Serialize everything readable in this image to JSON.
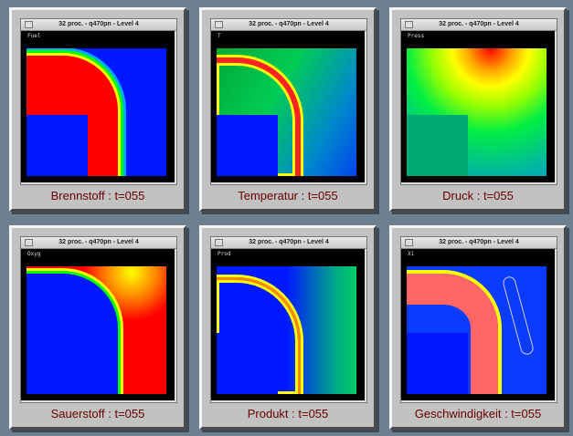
{
  "window_title": "32 proc. - q470pn   - Level 4",
  "panels": [
    {
      "variable": "Fuel",
      "caption": "Brennstoff : t=055"
    },
    {
      "variable": "T",
      "caption": "Temperatur : t=055"
    },
    {
      "variable": "Press",
      "caption": "Druck : t=055"
    },
    {
      "variable": "Oxyg",
      "caption": "Sauerstoff : t=055"
    },
    {
      "variable": "Prod",
      "caption": "Produkt : t=055"
    },
    {
      "variable": "Xi",
      "caption": "Geschwindigkeit : t=055"
    }
  ],
  "colors": {
    "background": "#6e7f90",
    "caption": "#6a0000",
    "frame": "#c2c2c2"
  }
}
